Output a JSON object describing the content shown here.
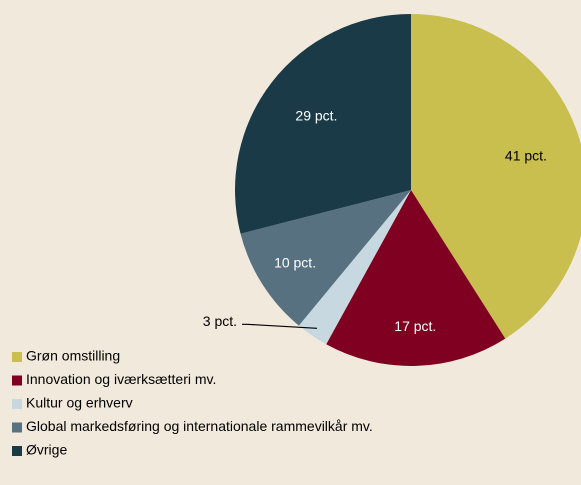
{
  "chart_data": {
    "type": "pie",
    "categories": [
      "Grøn omstilling",
      "Innovation og iværksætteri mv.",
      "Kultur og erhverv",
      "Global markedsføring og internationale rammevilkår mv.",
      "Øvrige"
    ],
    "values": [
      41,
      17,
      3,
      10,
      29
    ],
    "value_labels": [
      "41 pct.",
      "17 pct.",
      "3 pct.",
      "10 pct.",
      "29 pct."
    ],
    "colors": [
      "#c8bf4f",
      "#7f0020",
      "#c8d8e0",
      "#577180",
      "#1a3a48"
    ]
  }
}
